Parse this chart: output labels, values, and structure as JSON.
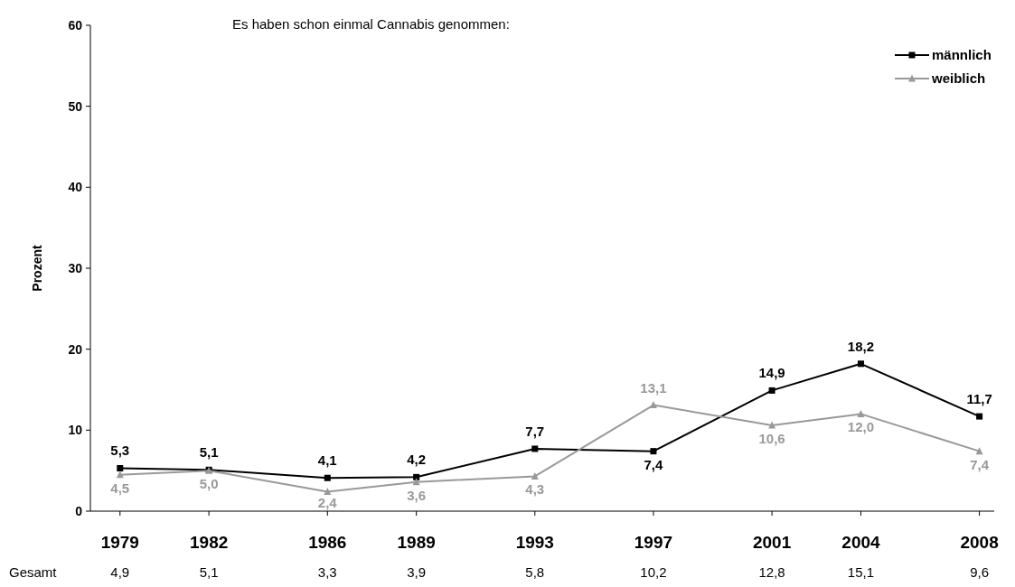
{
  "chart_data": {
    "type": "line",
    "title": "Es haben schon einmal Cannabis genommen:",
    "ylabel": "Prozent",
    "x": [
      1979,
      1982,
      1986,
      1989,
      1993,
      1997,
      2001,
      2004,
      2008
    ],
    "xlim": [
      1978,
      2008.5
    ],
    "xticks": [
      1979,
      1982,
      1986,
      1989,
      1993,
      1997,
      2001,
      2004,
      2008
    ],
    "ylim": [
      0,
      60
    ],
    "yticks": [
      0,
      10,
      20,
      30,
      40,
      50,
      60
    ],
    "series": [
      {
        "name": "männlich",
        "color": "#000000",
        "marker": "square",
        "values": [
          5.3,
          5.1,
          4.1,
          4.2,
          7.7,
          7.4,
          14.9,
          18.2,
          11.7
        ],
        "value_labels": [
          "5,3",
          "5,1",
          "4,1",
          "4,2",
          "7,7",
          "7,4",
          "14,9",
          "18,2",
          "11,7"
        ]
      },
      {
        "name": "weiblich",
        "color": "#999999",
        "marker": "triangle",
        "values": [
          4.5,
          5.0,
          2.4,
          3.6,
          4.3,
          13.1,
          10.6,
          12.0,
          7.4
        ],
        "value_labels": [
          "4,5",
          "5,0",
          "2,4",
          "3,6",
          "4,3",
          "13,1",
          "10,6",
          "12,0",
          "7,4"
        ]
      }
    ],
    "annotations": [
      "Gesamt",
      "4,9",
      "5,1",
      "3,3",
      "3,9",
      "5,8",
      "10,2",
      "12,8",
      "15,1",
      "9,6"
    ],
    "legend": "top right",
    "grid": false,
    "line_style": "solid"
  }
}
